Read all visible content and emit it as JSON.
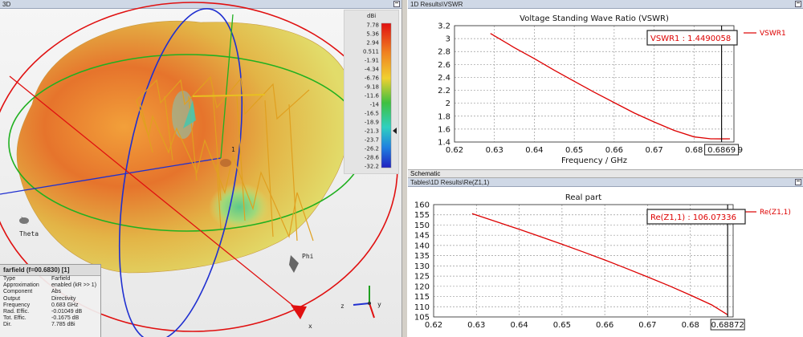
{
  "view3d": {
    "title": "3D",
    "colorbar": {
      "unit": "dBi",
      "ticks": [
        "7.78",
        "5.36",
        "2.94",
        "0.511",
        "-1.91",
        "-4.34",
        "-6.76",
        "-9.18",
        "-11.6",
        "-14",
        "-16.5",
        "-18.9",
        "-21.3",
        "-23.7",
        "-26.2",
        "-28.6",
        "-32.2"
      ]
    },
    "axis_labels": {
      "theta": "Theta",
      "phi": "Phi",
      "x": "x",
      "z": "z",
      "y": "y"
    },
    "port_label": "1",
    "info": {
      "title": "farfield (f=00.6830) [1]",
      "rows": [
        {
          "k": "Type",
          "v": "Farfield"
        },
        {
          "k": "Approximation",
          "v": "enabled (kR >> 1)"
        },
        {
          "k": "Component",
          "v": "Abs"
        },
        {
          "k": "Output",
          "v": "Directivity"
        },
        {
          "k": "Frequency",
          "v": "0.683 GHz"
        },
        {
          "k": "Rad. Effic.",
          "v": "-0.01049 dB"
        },
        {
          "k": "Tot. Effic.",
          "v": "-0.1675 dB"
        },
        {
          "k": "Dir.",
          "v": "7.785 dBi"
        }
      ]
    }
  },
  "vswr": {
    "pane_title": "1D Results\\VSWR",
    "marker_label": "VSWR1 : 1.4490058",
    "marker_x_label": "0.6869"
  },
  "schematic_label": "Schematic",
  "re": {
    "pane_title": "Tables\\1D Results\\Re(Z1,1)",
    "marker_label": "Re(Z1,1) : 106.07336",
    "marker_x_label": "0.68872"
  },
  "colors": {
    "curve": "#dd0000",
    "titlebar": "#cfd8e6"
  },
  "chart_data": [
    {
      "type": "line",
      "title": "Voltage Standing Wave Ratio (VSWR)",
      "xlabel": "Frequency / GHz",
      "ylabel": "",
      "xlim": [
        0.62,
        0.69
      ],
      "ylim": [
        1.4,
        3.2
      ],
      "xticks": [
        "0.62",
        "0.63",
        "0.64",
        "0.65",
        "0.66",
        "0.67",
        "0.68",
        "0.69"
      ],
      "yticks": [
        "1.4",
        "1.6",
        "1.8",
        "2",
        "2.2",
        "2.4",
        "2.6",
        "2.8",
        "3",
        "3.2"
      ],
      "series": [
        {
          "name": "VSWR1",
          "x": [
            0.629,
            0.635,
            0.64,
            0.645,
            0.65,
            0.655,
            0.66,
            0.665,
            0.67,
            0.675,
            0.68,
            0.6842,
            0.6869,
            0.689
          ],
          "y": [
            3.08,
            2.86,
            2.69,
            2.51,
            2.34,
            2.17,
            2.01,
            1.85,
            1.71,
            1.58,
            1.48,
            1.45,
            1.449,
            1.45
          ]
        }
      ],
      "marker": {
        "x": 0.6869,
        "y": 1.4490058
      },
      "grid": true,
      "legend": "right"
    },
    {
      "type": "line",
      "title": "Real part",
      "xlabel": "",
      "ylabel": "",
      "xlim": [
        0.62,
        0.69
      ],
      "ylim": [
        105,
        160
      ],
      "xticks": [
        "0.62",
        "0.63",
        "0.64",
        "0.65",
        "0.66",
        "0.67",
        "0.68"
      ],
      "yticks": [
        "105",
        "110",
        "115",
        "120",
        "125",
        "130",
        "135",
        "140",
        "145",
        "150",
        "155",
        "160"
      ],
      "series": [
        {
          "name": "Re(Z1,1)",
          "x": [
            0.629,
            0.635,
            0.64,
            0.645,
            0.65,
            0.655,
            0.66,
            0.665,
            0.67,
            0.675,
            0.68,
            0.685,
            0.68872
          ],
          "y": [
            155.6,
            151.4,
            147.9,
            144.3,
            140.6,
            136.8,
            132.9,
            128.8,
            124.6,
            120.3,
            115.7,
            110.9,
            106.07
          ]
        }
      ],
      "marker": {
        "x": 0.68872,
        "y": 106.07336
      },
      "grid": true,
      "legend": "right"
    }
  ]
}
